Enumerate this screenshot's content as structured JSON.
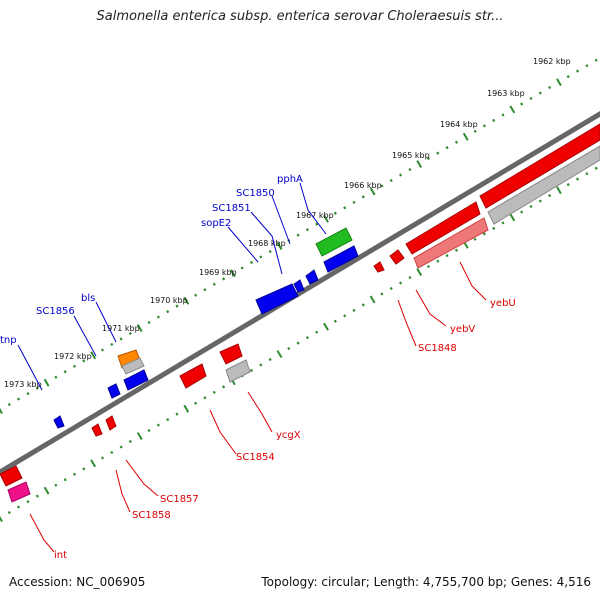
{
  "title": "Salmonella enterica subsp. enterica serovar Choleraesuis str...",
  "footer": {
    "accession": "Accession: NC_006905",
    "summary": "Topology: circular; Length: 4,755,700 bp; Genes: 4,516"
  },
  "colors": {
    "backbone": "#6e6e6e",
    "tick": "#2e8b2e",
    "label_forward": "#0000cc",
    "label_reverse": "#dd0000",
    "gene_blue": "#0000ee",
    "gene_red": "#ee0000",
    "gene_green": "#22bb22",
    "gene_orange": "#ff8800",
    "gene_gray": "#bbbbbb",
    "gene_pink": "#ee7777",
    "gene_magenta": "#ee1188"
  },
  "scale": {
    "tick_labels": [
      "1962 kbp",
      "1963 kbp",
      "1964 kbp",
      "1965 kbp",
      "1966 kbp",
      "1967 kbp",
      "1968 kbp",
      "1969 kbp",
      "1970 kbp",
      "1971 kbp",
      "1972 kbp",
      "1973 kbp"
    ]
  },
  "forward_labels": [
    "pphA",
    "SC1850",
    "SC1851",
    "sopE2",
    "bls",
    "SC1856",
    "tnp"
  ],
  "reverse_labels": [
    "yebU",
    "yebV",
    "SC1848",
    "ycgX",
    "SC1854",
    "SC1857",
    "SC1858",
    "int"
  ]
}
